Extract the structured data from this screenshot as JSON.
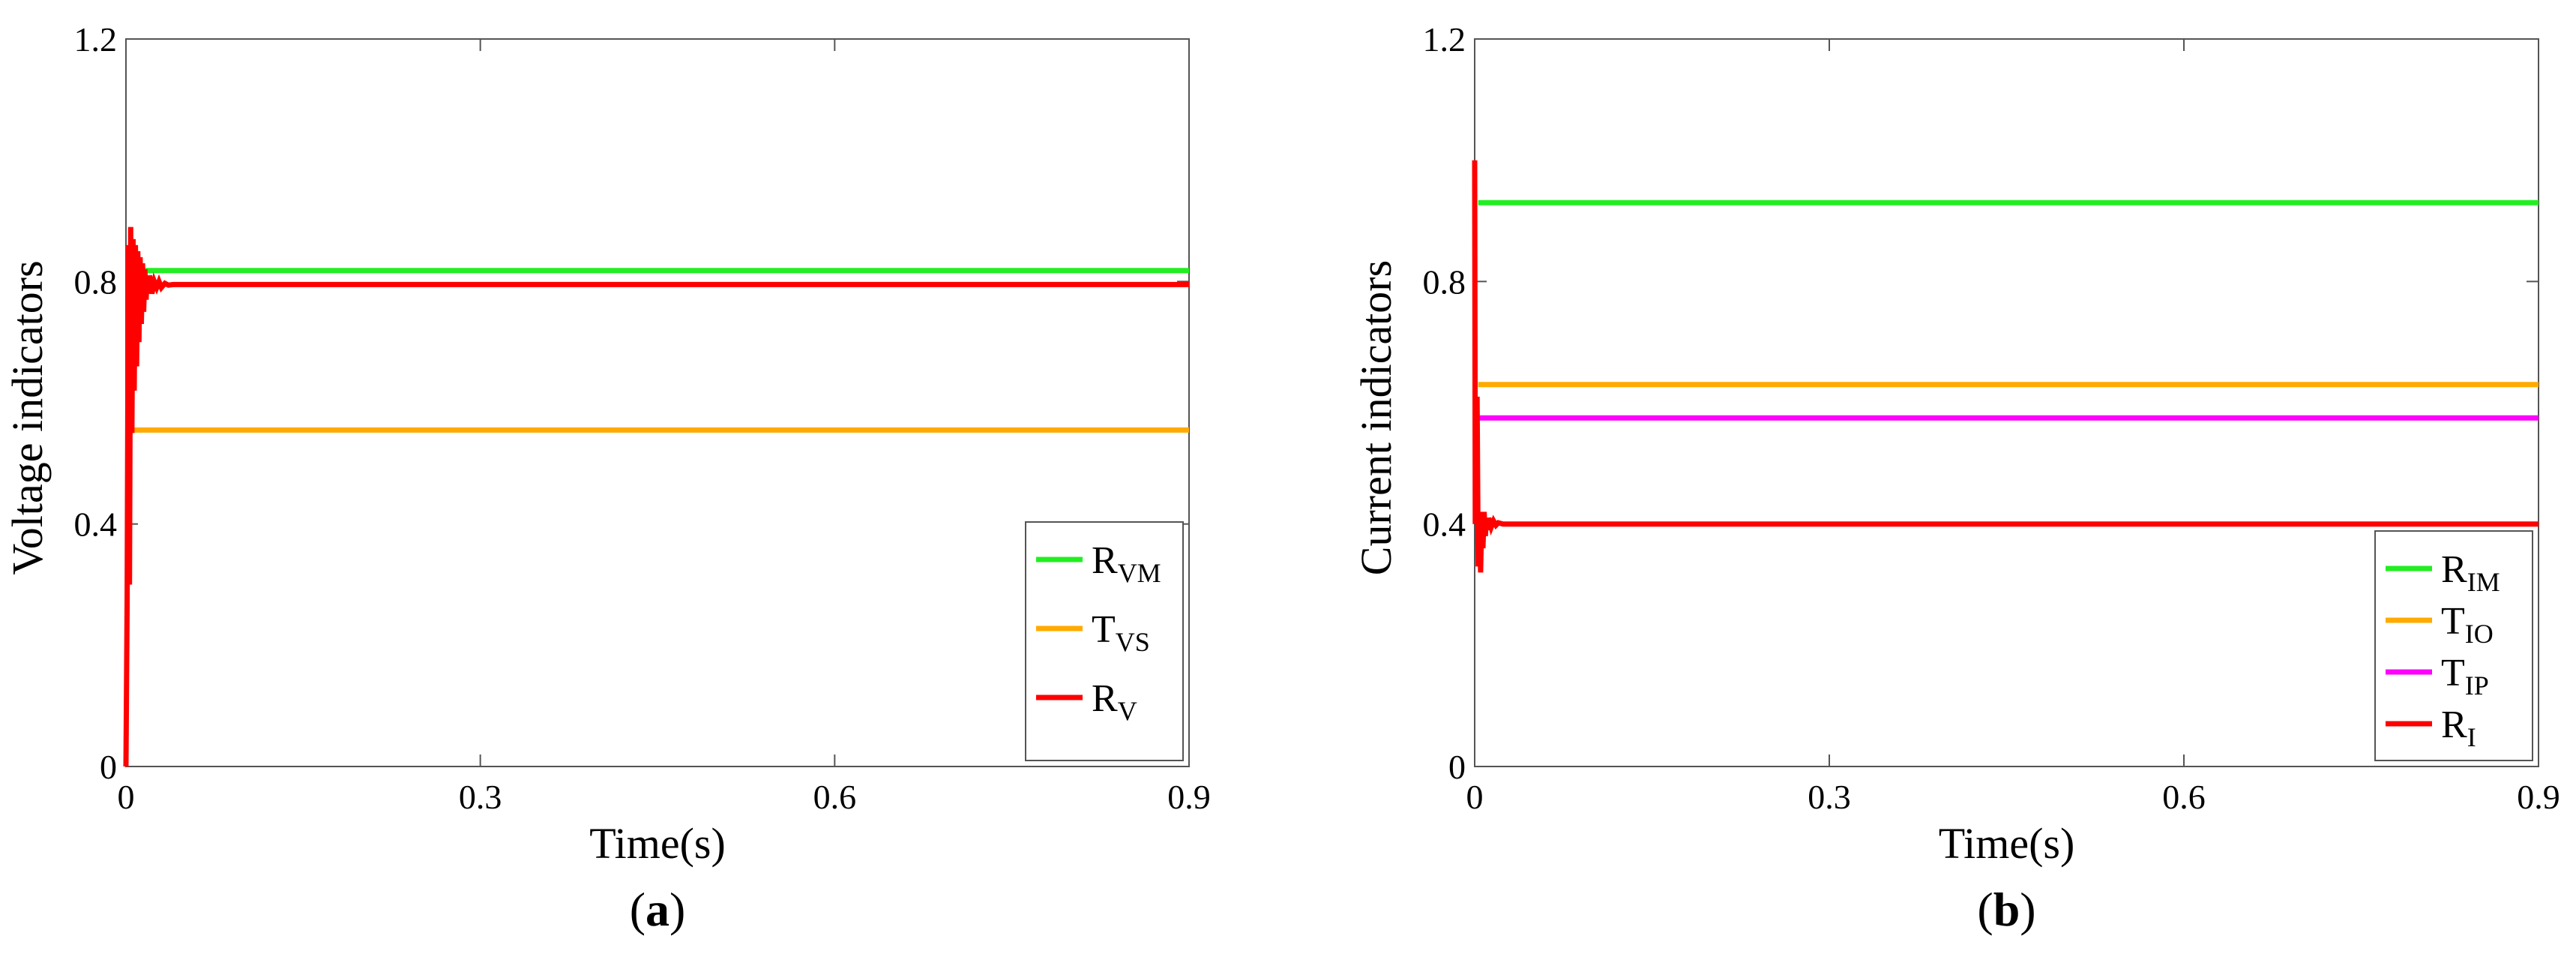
{
  "chart_data": [
    {
      "type": "line",
      "panel": "a",
      "panel_label": {
        "open": "(",
        "letter": "a",
        "close": ")"
      },
      "xlabel": "Time(s)",
      "ylabel": "Voltage indicators",
      "xlim": [
        0,
        0.9
      ],
      "ylim": [
        0,
        1.2
      ],
      "xticks": [
        0,
        0.3,
        0.6,
        0.9
      ],
      "xtick_labels": [
        "0",
        "0.3",
        "0.6",
        "0.9"
      ],
      "yticks": [
        0,
        0.4,
        0.8,
        1.2
      ],
      "ytick_labels": [
        "0",
        "0.4",
        "0.8",
        "1.2"
      ],
      "legend_position": "lower-right",
      "series": [
        {
          "name": "R_VM",
          "label_main": "R",
          "label_sub": "VM",
          "color": "#22ee22",
          "steady": 0.818,
          "x": [
            0.005,
            0.9
          ],
          "y": [
            0.818,
            0.818
          ]
        },
        {
          "name": "T_VS",
          "label_main": "T",
          "label_sub": "VS",
          "color": "#ffaa00",
          "steady": 0.555,
          "x": [
            0.002,
            0.9
          ],
          "y": [
            0.555,
            0.555
          ]
        },
        {
          "name": "R_V",
          "label_main": "R",
          "label_sub": "V",
          "color": "#ff0000",
          "steady": 0.795,
          "x": [
            0.0,
            0.001,
            0.002,
            0.003,
            0.004,
            0.005,
            0.006,
            0.007,
            0.008,
            0.009,
            0.01,
            0.011,
            0.012,
            0.013,
            0.014,
            0.015,
            0.016,
            0.017,
            0.018,
            0.019,
            0.02,
            0.022,
            0.024,
            0.026,
            0.028,
            0.03,
            0.033,
            0.036,
            0.04,
            0.9
          ],
          "y": [
            0.0,
            0.28,
            0.86,
            0.3,
            0.89,
            0.55,
            0.87,
            0.62,
            0.86,
            0.66,
            0.85,
            0.7,
            0.84,
            0.73,
            0.83,
            0.75,
            0.82,
            0.77,
            0.81,
            0.78,
            0.81,
            0.78,
            0.8,
            0.79,
            0.8,
            0.79,
            0.797,
            0.794,
            0.795,
            0.795
          ]
        }
      ]
    },
    {
      "type": "line",
      "panel": "b",
      "panel_label": {
        "open": "(",
        "letter": "b",
        "close": ")"
      },
      "xlabel": "Time(s)",
      "ylabel": "Current indicators",
      "xlim": [
        0,
        0.9
      ],
      "ylim": [
        0,
        1.2
      ],
      "xticks": [
        0,
        0.3,
        0.6,
        0.9
      ],
      "xtick_labels": [
        "0",
        "0.3",
        "0.6",
        "0.9"
      ],
      "yticks": [
        0,
        0.4,
        0.8,
        1.2
      ],
      "ytick_labels": [
        "0",
        "0.4",
        "0.8",
        "1.2"
      ],
      "legend_position": "lower-right",
      "series": [
        {
          "name": "R_IM",
          "label_main": "R",
          "label_sub": "IM",
          "color": "#22ee22",
          "steady": 0.93,
          "x": [
            0.003,
            0.9
          ],
          "y": [
            0.93,
            0.93
          ]
        },
        {
          "name": "T_IO",
          "label_main": "T",
          "label_sub": "IO",
          "color": "#ffaa00",
          "steady": 0.63,
          "x": [
            0.003,
            0.9
          ],
          "y": [
            0.63,
            0.63
          ]
        },
        {
          "name": "T_IP",
          "label_main": "T",
          "label_sub": "IP",
          "color": "#ff00ff",
          "steady": 0.575,
          "x": [
            0.003,
            0.9
          ],
          "y": [
            0.575,
            0.575
          ]
        },
        {
          "name": "R_I",
          "label_main": "R",
          "label_sub": "I",
          "color": "#ff0000",
          "steady": 0.4,
          "x": [
            0.0,
            0.0005,
            0.001,
            0.0015,
            0.002,
            0.003,
            0.004,
            0.005,
            0.006,
            0.007,
            0.008,
            0.009,
            0.01,
            0.011,
            0.012,
            0.014,
            0.016,
            0.018,
            0.02,
            0.024,
            0.028,
            0.9
          ],
          "y": [
            1.0,
            0.4,
            0.59,
            0.4,
            0.61,
            0.33,
            0.42,
            0.32,
            0.42,
            0.36,
            0.42,
            0.38,
            0.41,
            0.39,
            0.41,
            0.395,
            0.405,
            0.398,
            0.402,
            0.4,
            0.4,
            0.4
          ]
        }
      ]
    }
  ]
}
